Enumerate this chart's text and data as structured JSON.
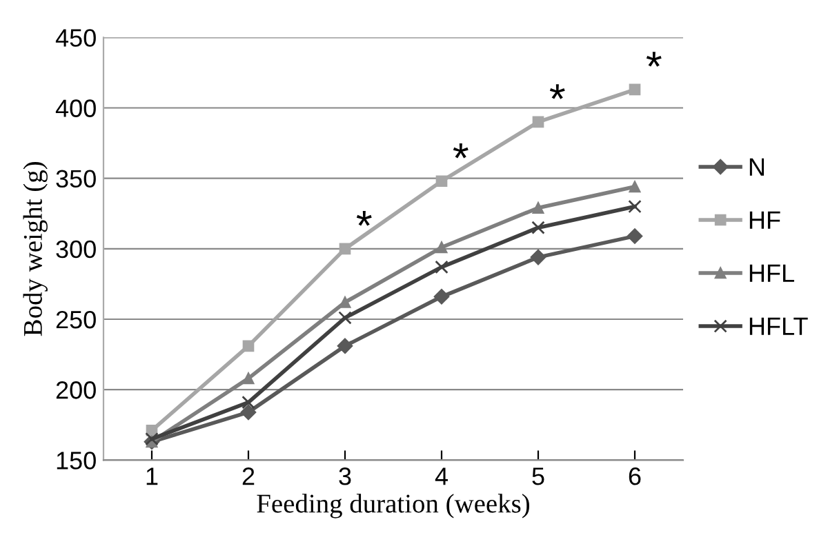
{
  "chart_data": {
    "type": "line",
    "xlabel": "Feeding duration (weeks)",
    "ylabel": "Body weight (g)",
    "categories": [
      "1",
      "2",
      "3",
      "4",
      "5",
      "6"
    ],
    "series": [
      {
        "name": "N",
        "color": "#595959",
        "marker": "diamond",
        "values": [
          163,
          184,
          231,
          266,
          294,
          309
        ]
      },
      {
        "name": "HF",
        "color": "#a6a6a6",
        "marker": "square",
        "values": [
          171,
          231,
          300,
          348,
          390,
          413
        ]
      },
      {
        "name": "HFL",
        "color": "#7f7f7f",
        "marker": "triangle",
        "values": [
          163,
          208,
          262,
          301,
          329,
          344
        ]
      },
      {
        "name": "HFLT",
        "color": "#404040",
        "marker": "cross",
        "values": [
          165,
          191,
          251,
          287,
          315,
          330
        ]
      }
    ],
    "annotations": [
      {
        "text": "*",
        "x": "3",
        "y": 300
      },
      {
        "text": "*",
        "x": "4",
        "y": 348
      },
      {
        "text": "*",
        "x": "5",
        "y": 390
      },
      {
        "text": "*",
        "x": "6",
        "y": 413
      }
    ],
    "ylim": [
      150,
      450
    ],
    "yticks": [
      150,
      200,
      250,
      300,
      350,
      400,
      450
    ],
    "grid": "y",
    "legend": "right"
  }
}
